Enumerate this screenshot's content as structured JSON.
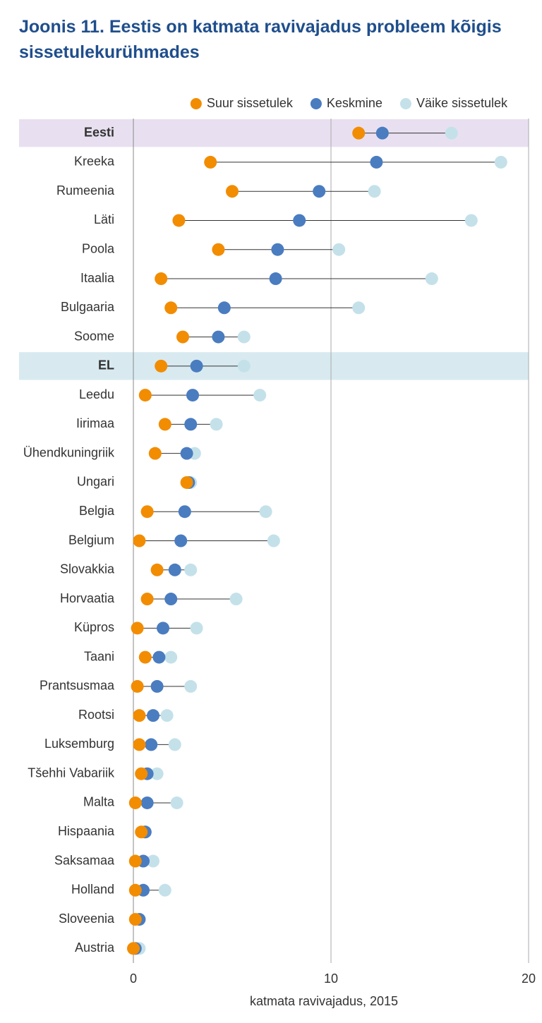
{
  "chart_data": {
    "type": "dot",
    "title": "Joonis 11. Eestis on katmata ravivajadus probleem kõigis sissetulekurühmades",
    "xlabel": "katmata ravivajadus, 2015",
    "categories": [
      "Eesti",
      "Kreeka",
      "Rumeenia",
      "Läti",
      "Poola",
      "Itaalia",
      "Bulgaaria",
      "Soome",
      "EL",
      "Leedu",
      "Iirimaa",
      "Ühendkuningriik",
      "Ungari",
      "Belgia",
      "Belgium",
      "Slovakkia",
      "Horvaatia",
      "Küpros",
      "Taani",
      "Prantsusmaa",
      "Rootsi",
      "Luksemburg",
      "Tšehhi Vabariik",
      "Malta",
      "Hispaania",
      "Saksamaa",
      "Holland",
      "Sloveenia",
      "Austria"
    ],
    "series": [
      {
        "name": "Suur sissetulek",
        "color": "#f28c00",
        "values": [
          11.4,
          3.9,
          5.0,
          2.3,
          4.3,
          1.4,
          1.9,
          2.5,
          1.4,
          0.6,
          1.6,
          1.1,
          2.7,
          0.7,
          0.3,
          1.2,
          0.7,
          0.2,
          0.6,
          0.2,
          0.3,
          0.3,
          0.4,
          0.1,
          0.4,
          0.1,
          0.1,
          0.1,
          0.0
        ]
      },
      {
        "name": "Keskmine",
        "color": "#4a7cc0",
        "values": [
          12.6,
          12.3,
          9.4,
          8.4,
          7.3,
          7.2,
          4.6,
          4.3,
          3.2,
          3.0,
          2.9,
          2.7,
          2.8,
          2.6,
          2.4,
          2.1,
          1.9,
          1.5,
          1.3,
          1.2,
          1.0,
          0.9,
          0.7,
          0.7,
          0.6,
          0.5,
          0.5,
          0.3,
          0.1
        ]
      },
      {
        "name": "Väike sissetulek",
        "color": "#c4e1ea",
        "values": [
          16.1,
          18.6,
          12.2,
          17.1,
          10.4,
          15.1,
          11.4,
          5.6,
          5.6,
          6.4,
          4.2,
          3.1,
          2.9,
          6.7,
          7.1,
          2.9,
          5.2,
          3.2,
          1.9,
          2.9,
          1.7,
          2.1,
          1.2,
          2.2,
          0.6,
          1.0,
          1.6,
          0.3,
          0.3
        ]
      }
    ],
    "highlighted": [
      {
        "category_index": 0,
        "color": "#e8e0f0"
      },
      {
        "category_index": 8,
        "color": "#d8eaf0"
      }
    ],
    "xlim": [
      0,
      20
    ],
    "xticks": [
      0,
      10,
      20
    ],
    "grid": true,
    "legend": "top-right"
  }
}
